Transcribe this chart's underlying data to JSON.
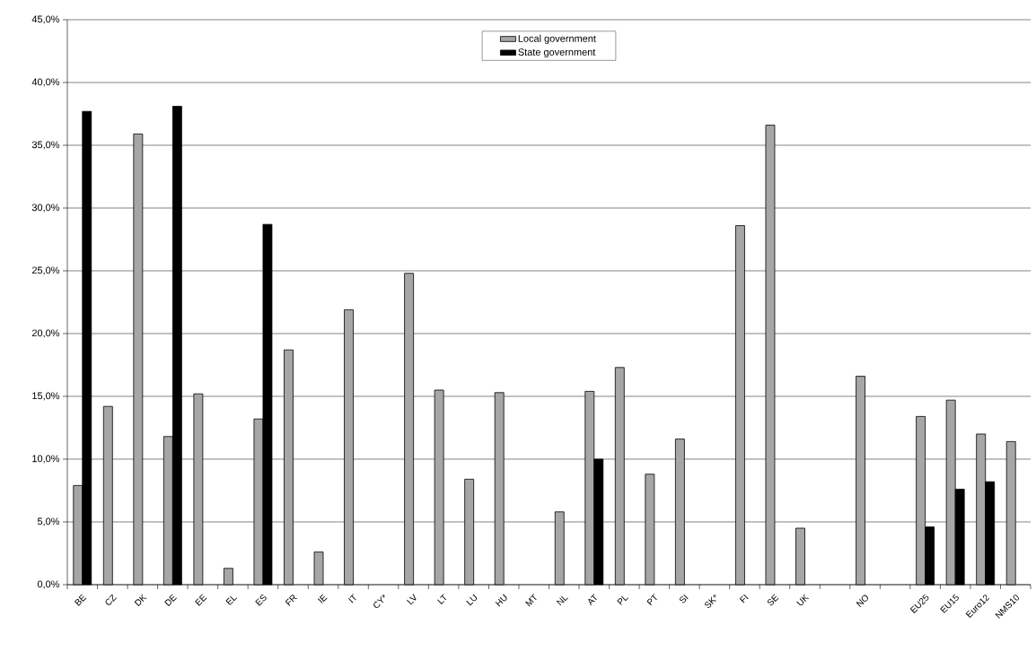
{
  "chart_data": {
    "type": "bar",
    "categories": [
      "BE",
      "CZ",
      "DK",
      "DE",
      "EE",
      "EL",
      "ES",
      "FR",
      "IE",
      "IT",
      "CY*",
      "LV",
      "LT",
      "LU",
      "HU",
      "MT",
      "NL",
      "AT",
      "PL",
      "PT",
      "SI",
      "SK*",
      "FI",
      "SE",
      "UK",
      null,
      "NO",
      null,
      "EU25",
      "EU15",
      "Euro12",
      "NMS10"
    ],
    "series": [
      {
        "name": "Local government",
        "color": "#a6a6a6",
        "values": [
          7.9,
          14.2,
          35.9,
          11.8,
          15.2,
          1.3,
          13.2,
          18.7,
          2.6,
          21.9,
          null,
          24.8,
          15.5,
          8.4,
          15.3,
          null,
          5.8,
          15.4,
          17.3,
          8.8,
          11.6,
          null,
          28.6,
          36.6,
          4.5,
          null,
          16.6,
          null,
          13.4,
          14.7,
          12.0,
          11.4
        ]
      },
      {
        "name": "State government",
        "color": "#000000",
        "values": [
          37.7,
          null,
          null,
          38.1,
          null,
          null,
          28.7,
          null,
          null,
          null,
          null,
          null,
          null,
          null,
          null,
          null,
          null,
          10.0,
          null,
          null,
          null,
          null,
          null,
          null,
          null,
          null,
          null,
          null,
          4.6,
          7.6,
          8.2,
          null
        ]
      }
    ],
    "ylim": [
      0,
      45
    ],
    "yticks": [
      {
        "value": 0,
        "label": "0,0%"
      },
      {
        "value": 5,
        "label": "5,0%"
      },
      {
        "value": 10,
        "label": "10,0%"
      },
      {
        "value": 15,
        "label": "15,0%"
      },
      {
        "value": 20,
        "label": "20,0%"
      },
      {
        "value": 25,
        "label": "25,0%"
      },
      {
        "value": 30,
        "label": "30,0%"
      },
      {
        "value": 35,
        "label": "35,0%"
      },
      {
        "value": 40,
        "label": "40,0%"
      },
      {
        "value": 45,
        "label": "45,0%"
      }
    ],
    "grid": "y",
    "legend": "top"
  }
}
